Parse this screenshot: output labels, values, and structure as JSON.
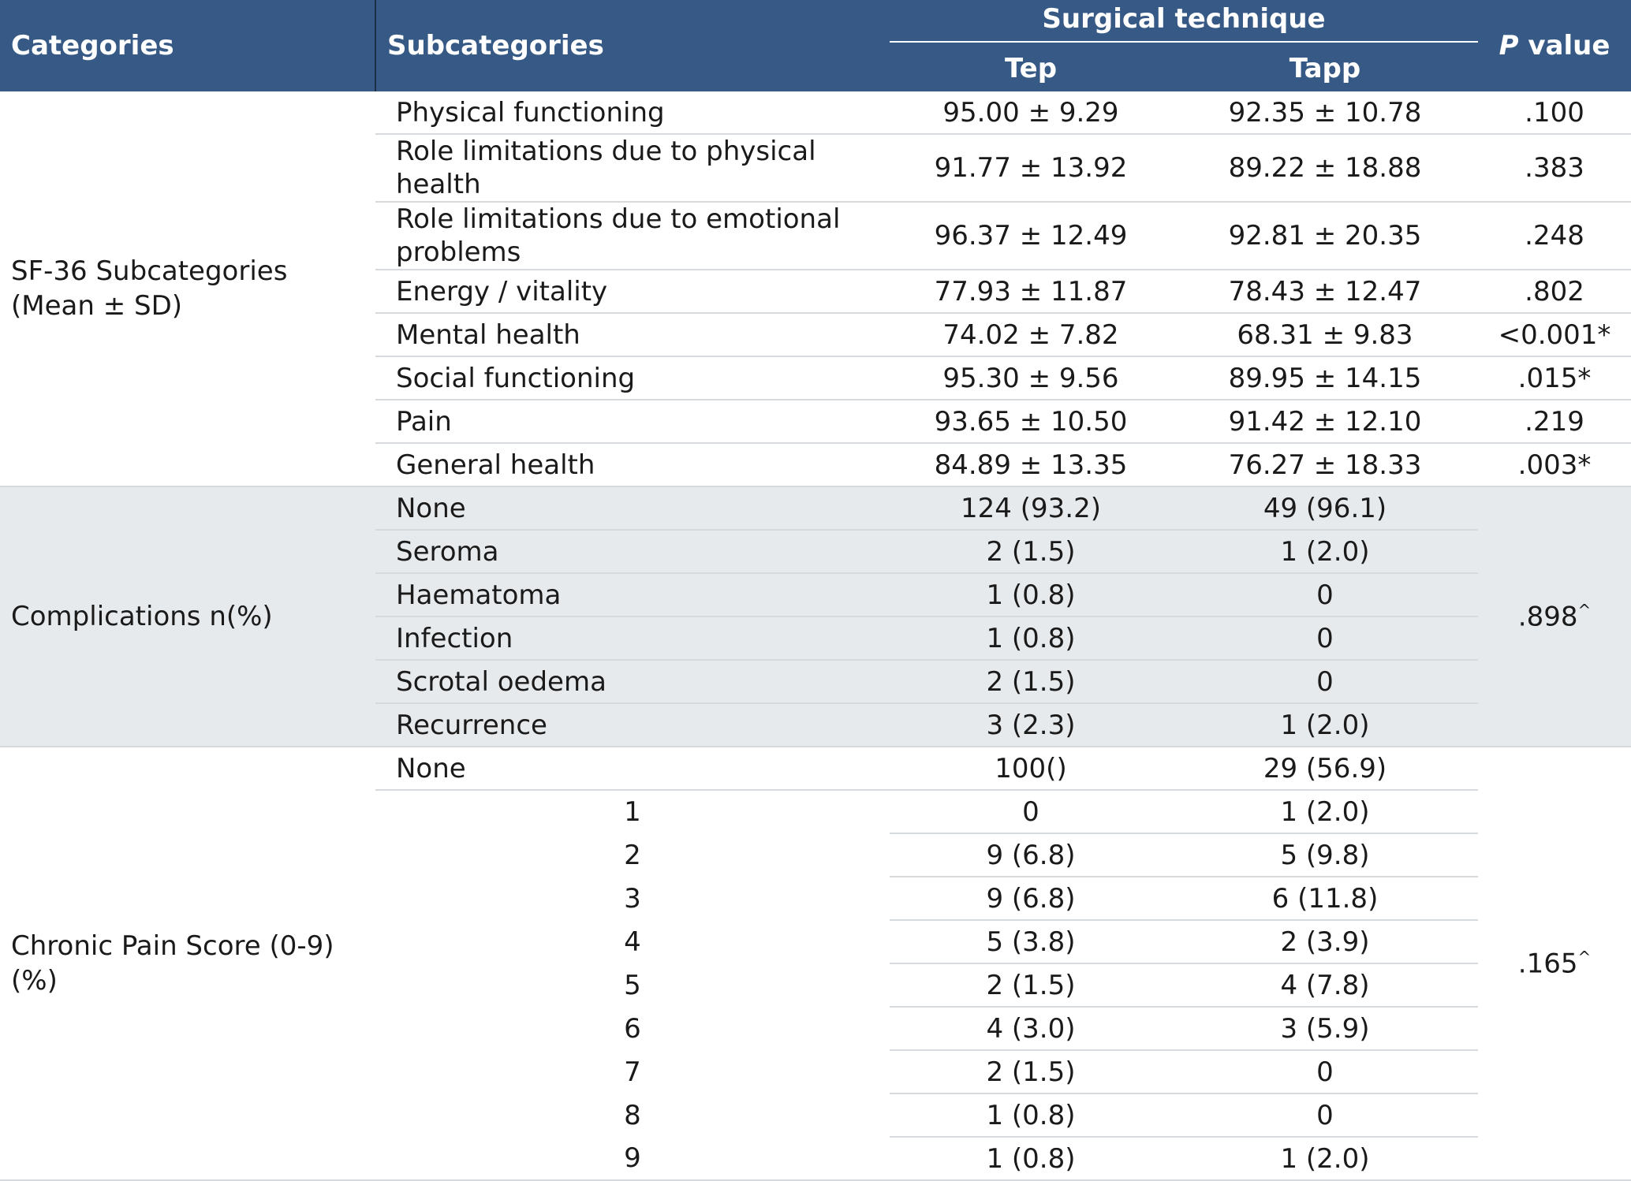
{
  "chart_data": {
    "type": "table",
    "headers": {
      "categories": "Categories",
      "subcategories": "Subcategories",
      "group": "Surgical technique",
      "tep": "Tep",
      "tapp": "Tapp",
      "p_italic": "P",
      "p_rest": " value"
    },
    "sf36": {
      "label_line1": "SF-36 Subcategories",
      "label_line2": "(Mean ± SD)",
      "rows": [
        {
          "sub": "Physical functioning",
          "tep": "95.00 ± 9.29",
          "tapp": "92.35 ± 10.78",
          "p": ".100"
        },
        {
          "sub": "Role limitations due to physical health",
          "tep": "91.77 ± 13.92",
          "tapp": "89.22 ± 18.88",
          "p": ".383"
        },
        {
          "sub": "Role limitations due to emotional problems",
          "tep": "96.37 ± 12.49",
          "tapp": "92.81 ± 20.35",
          "p": ".248"
        },
        {
          "sub": "Energy / vitality",
          "tep": "77.93 ± 11.87",
          "tapp": "78.43 ± 12.47",
          "p": ".802"
        },
        {
          "sub": "Mental health",
          "tep": "74.02 ± 7.82",
          "tapp": "68.31 ± 9.83",
          "p": "<0.001*"
        },
        {
          "sub": "Social functioning",
          "tep": "95.30 ± 9.56",
          "tapp": "89.95 ± 14.15",
          "p": ".015*"
        },
        {
          "sub": "Pain",
          "tep": "93.65 ± 10.50",
          "tapp": "91.42 ± 12.10",
          "p": ".219"
        },
        {
          "sub": "General health",
          "tep": "84.89 ± 13.35",
          "tapp": "76.27 ± 18.33",
          "p": ".003*"
        }
      ]
    },
    "complications": {
      "label": "Complications n(%)",
      "p": ".898",
      "p_mark": "^",
      "rows": [
        {
          "sub": "None",
          "tep": "124 (93.2)",
          "tapp": "49 (96.1)"
        },
        {
          "sub": "Seroma",
          "tep": "2 (1.5)",
          "tapp": "1 (2.0)"
        },
        {
          "sub": "Haematoma",
          "tep": "1 (0.8)",
          "tapp": "0"
        },
        {
          "sub": "Infection",
          "tep": "1 (0.8)",
          "tapp": "0"
        },
        {
          "sub": "Scrotal oedema",
          "tep": "2 (1.5)",
          "tapp": "0"
        },
        {
          "sub": "Recurrence",
          "tep": "3 (2.3)",
          "tapp": "1 (2.0)"
        }
      ]
    },
    "chronic_pain": {
      "label": "Chronic Pain Score (0-9) (%)",
      "p": ".165",
      "p_mark": "^",
      "rows": [
        {
          "sub": "None",
          "tep": "100()",
          "tapp": "29 (56.9)"
        },
        {
          "sub": "1",
          "tep": "0",
          "tapp": "1 (2.0)"
        },
        {
          "sub": "2",
          "tep": "9 (6.8)",
          "tapp": "5 (9.8)"
        },
        {
          "sub": "3",
          "tep": "9 (6.8)",
          "tapp": "6 (11.8)"
        },
        {
          "sub": "4",
          "tep": "5 (3.8)",
          "tapp": "2 (3.9)"
        },
        {
          "sub": "5",
          "tep": "2 (1.5)",
          "tapp": "4 (7.8)"
        },
        {
          "sub": "6",
          "tep": "4 (3.0)",
          "tapp": "3 (5.9)"
        },
        {
          "sub": "7",
          "tep": "2 (1.5)",
          "tapp": "0"
        },
        {
          "sub": "8",
          "tep": "1 (0.8)",
          "tapp": "0"
        },
        {
          "sub": "9",
          "tep": "1 (0.8)",
          "tapp": "1 (2.0)"
        }
      ]
    }
  },
  "colors": {
    "header_bg": "#365a85",
    "grey_band": "#e7eaed",
    "rule": "#d6d9dd"
  }
}
